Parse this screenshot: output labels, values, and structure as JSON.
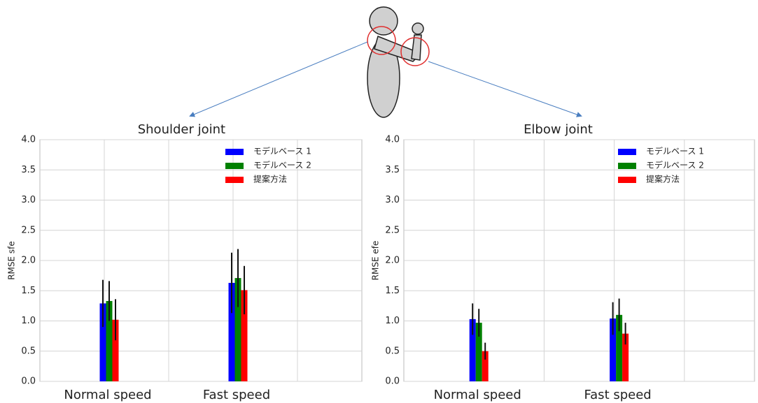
{
  "chart_data": [
    {
      "type": "bar",
      "title": "Shoulder joint",
      "y_label": "RMSE sfe",
      "categories": [
        "Normal speed",
        "Fast speed"
      ],
      "x": [
        1,
        3
      ],
      "xlim": [
        0,
        5
      ],
      "xticks": [
        1,
        2,
        3,
        4
      ],
      "ylim": [
        0,
        4
      ],
      "yticks": [
        {
          "value": 0,
          "label": "0.0"
        },
        {
          "value": 0.5,
          "label": "0.5"
        },
        {
          "value": 1,
          "label": "1.0"
        },
        {
          "value": 1.5,
          "label": "1.5"
        },
        {
          "value": 2,
          "label": "2.0"
        },
        {
          "value": 2.5,
          "label": "2.5"
        },
        {
          "value": 3,
          "label": "3.0"
        },
        {
          "value": 3.5,
          "label": "3.5"
        },
        {
          "value": 4,
          "label": "4.0"
        }
      ],
      "grid": true,
      "legend": "upper right",
      "series": [
        {
          "name": "モデルベース 1",
          "color": "#0000ff",
          "values": [
            1.29,
            1.63
          ],
          "errors": [
            0.39,
            0.5
          ]
        },
        {
          "name": "モデルベース 2",
          "color": "#008000",
          "values": [
            1.33,
            1.71
          ],
          "errors": [
            0.33,
            0.48
          ]
        },
        {
          "name": "提案方法",
          "color": "#ff0000",
          "values": [
            1.02,
            1.51
          ],
          "errors": [
            0.34,
            0.4
          ]
        }
      ]
    },
    {
      "type": "bar",
      "title": "Elbow joint",
      "y_label": "RMSE efe",
      "categories": [
        "Normal speed",
        "Fast speed"
      ],
      "x": [
        1,
        3
      ],
      "xlim": [
        0,
        5
      ],
      "xticks": [
        1,
        2,
        3,
        4
      ],
      "ylim": [
        0,
        4
      ],
      "yticks": [
        {
          "value": 0,
          "label": "0.0"
        },
        {
          "value": 0.5,
          "label": "0.5"
        },
        {
          "value": 1,
          "label": "1.0"
        },
        {
          "value": 1.5,
          "label": "1.5"
        },
        {
          "value": 2,
          "label": "2.0"
        },
        {
          "value": 2.5,
          "label": "2.5"
        },
        {
          "value": 3,
          "label": "3.0"
        },
        {
          "value": 3.5,
          "label": "3.5"
        },
        {
          "value": 4,
          "label": "4.0"
        }
      ],
      "grid": true,
      "legend": "upper right",
      "series": [
        {
          "name": "モデルベース 1",
          "color": "#0000ff",
          "values": [
            1.03,
            1.04
          ],
          "errors": [
            0.26,
            0.27
          ]
        },
        {
          "name": "モデルベース 2",
          "color": "#008000",
          "values": [
            0.97,
            1.1
          ],
          "errors": [
            0.23,
            0.27
          ]
        },
        {
          "name": "提案方法",
          "color": "#ff0000",
          "values": [
            0.5,
            0.79
          ],
          "errors": [
            0.14,
            0.18
          ]
        }
      ]
    }
  ]
}
